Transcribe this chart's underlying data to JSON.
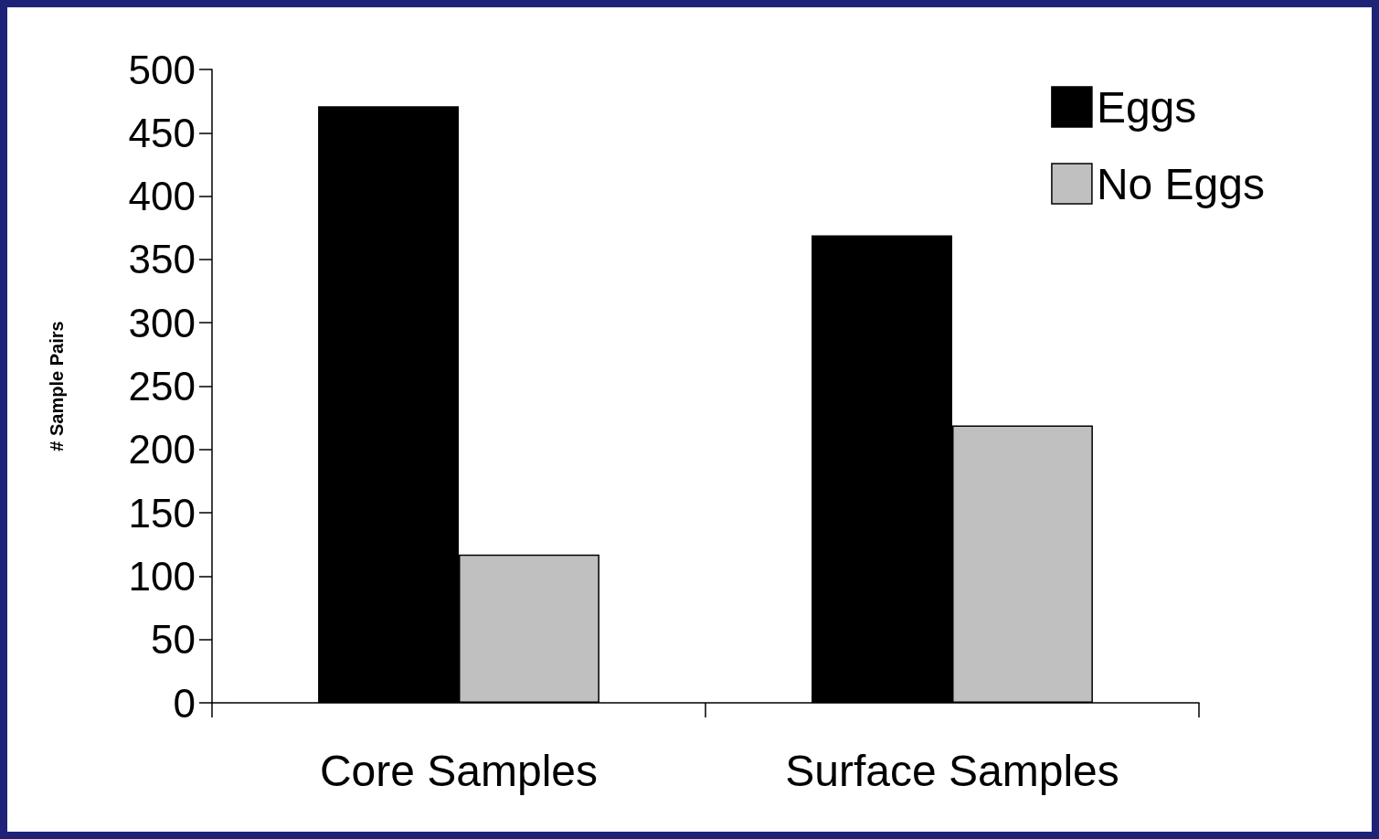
{
  "chart_data": {
    "type": "bar",
    "ylabel": "# Sample Pairs",
    "categories": [
      "Core Samples",
      "Surface Samples"
    ],
    "series": [
      {
        "name": "Eggs",
        "color": "#000000",
        "values": [
          471,
          369
        ]
      },
      {
        "name": "No Eggs",
        "color": "#c0c0c0",
        "values": [
          117,
          219
        ]
      }
    ],
    "ylim": [
      0,
      500
    ],
    "yticks": [
      0,
      50,
      100,
      150,
      200,
      250,
      300,
      350,
      400,
      450,
      500
    ],
    "grid": false,
    "legend": "top right"
  }
}
